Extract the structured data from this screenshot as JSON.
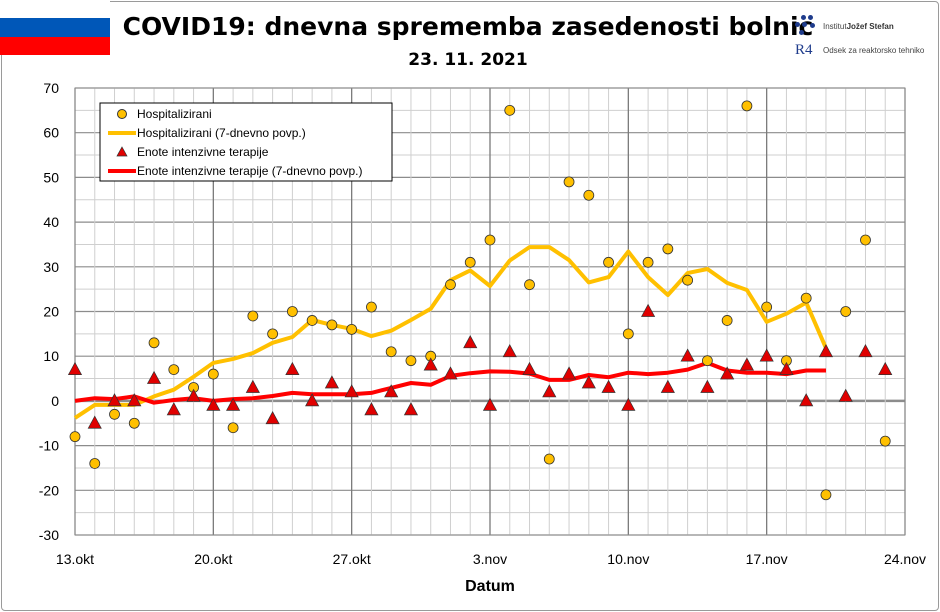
{
  "header": {
    "title": "COVID19: dnevna sprememba zasedenosti bolnic",
    "subtitle": "23. 11. 2021",
    "flag_colors": [
      "#ffffff",
      "#0057b8",
      "#ff0000"
    ],
    "logo_institute": "Institut Jožef Stefan",
    "logo_institute_plain": "Institut ",
    "logo_institute_bold": "Jožef Stefan",
    "logo_dept_mark": "R4",
    "logo_dept": "Odsek za reaktorsko tehniko"
  },
  "chart_data": {
    "type": "scatter+line",
    "title": "COVID19: dnevna sprememba zasedenosti bolnic",
    "subtitle": "23. 11. 2021",
    "xlabel": "Datum",
    "ylabel": "",
    "ylim": [
      -30,
      70
    ],
    "yticks": [
      -30,
      -20,
      -10,
      0,
      10,
      20,
      30,
      40,
      50,
      60,
      70
    ],
    "xlim": [
      "2021-10-13",
      "2021-11-24"
    ],
    "xticks": [
      {
        "date": "2021-10-13",
        "label": "13.okt"
      },
      {
        "date": "2021-10-20",
        "label": "20.okt"
      },
      {
        "date": "2021-10-27",
        "label": "27.okt"
      },
      {
        "date": "2021-11-03",
        "label": "3.nov"
      },
      {
        "date": "2021-11-10",
        "label": "10.nov"
      },
      {
        "date": "2021-11-17",
        "label": "17.nov"
      },
      {
        "date": "2021-11-24",
        "label": "24.nov"
      }
    ],
    "grid": true,
    "legend_position": "top-left",
    "x_start_date": "2021-10-13",
    "series": [
      {
        "name": "Hospitalizirani",
        "kind": "markers",
        "marker": "circle",
        "color": "#ffc000",
        "values": [
          -8,
          -14,
          -3,
          -5,
          13,
          7,
          3,
          6,
          -6,
          19,
          15,
          20,
          18,
          17,
          16,
          21,
          11,
          9,
          10,
          26,
          31,
          36,
          65,
          26,
          -13,
          49,
          46,
          31,
          15,
          31,
          34,
          27,
          9,
          18,
          66,
          21,
          9,
          23,
          -21,
          20,
          36,
          -9
        ]
      },
      {
        "name": "Hospitalizirani (7-dnevno povp.)",
        "kind": "line",
        "color": "#ffc000",
        "values": [
          -3.8,
          -0.9,
          -0.9,
          -0.9,
          1,
          2.5,
          5.4,
          8.5,
          9.4,
          10.7,
          13,
          14.3,
          18.1,
          17,
          16.1,
          14.5,
          15.7,
          18.1,
          20.6,
          27,
          29.2,
          25.7,
          31.4,
          34.4,
          34.4,
          31.5,
          26.5,
          27.7,
          33.4,
          27.7,
          23.7,
          28.6,
          29.5,
          26.4,
          24.8,
          17.7,
          19.5,
          22,
          11.8
        ]
      },
      {
        "name": "Enote intenzivne terapije",
        "kind": "markers",
        "marker": "triangle",
        "color": "#e00000",
        "values": [
          7,
          -5,
          0,
          0,
          5,
          -2,
          1,
          -1,
          -1,
          3,
          -4,
          7,
          0,
          4,
          2,
          -2,
          2,
          -2,
          8,
          6,
          13,
          -1,
          11,
          7,
          2,
          6,
          4,
          3,
          -1,
          20,
          3,
          10,
          3,
          6,
          8,
          10,
          7,
          0,
          11,
          1,
          11,
          7
        ]
      },
      {
        "name": "Enote intenzivne terapije (7-dnevno povp.)",
        "kind": "line",
        "color": "#ff0000",
        "values": [
          0,
          0.6,
          0.4,
          1,
          -0.4,
          0.2,
          0.6,
          0,
          0.4,
          0.6,
          1.1,
          1.8,
          1.5,
          1.5,
          1.5,
          1.8,
          2.9,
          4,
          3.6,
          5.6,
          6.2,
          6.6,
          6.5,
          6.1,
          4.7,
          4.7,
          5.8,
          5.3,
          6.3,
          6,
          6.3,
          7,
          8.5,
          6.8,
          6.3,
          6.3,
          6,
          6.8,
          6.8
        ]
      }
    ]
  }
}
